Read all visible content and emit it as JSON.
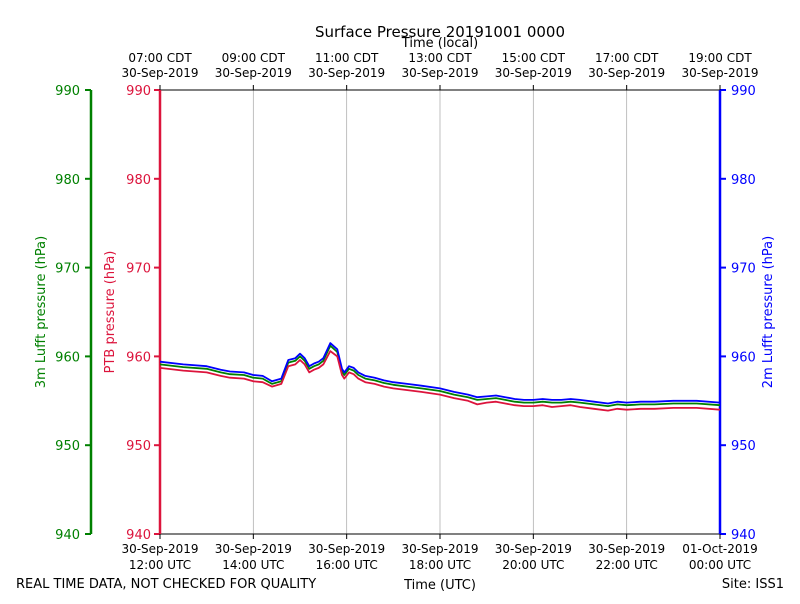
{
  "chart_data": {
    "type": "line",
    "title": "Surface Pressure 20191001 0000",
    "top_axis_label": "Time (local)",
    "xlabel": "Time (UTC)",
    "footer_left": "REAL TIME DATA, NOT CHECKED FOR QUALITY",
    "footer_right": "Site: ISS1",
    "xlim": [
      12,
      24
    ],
    "ylim": [
      940,
      990
    ],
    "y_ticks": [
      940,
      950,
      960,
      970,
      980,
      990
    ],
    "x_ticks": [
      12,
      14,
      16,
      18,
      20,
      22,
      24
    ],
    "bottom_tick_labels": [
      [
        "30-Sep-2019",
        "12:00 UTC"
      ],
      [
        "30-Sep-2019",
        "14:00 UTC"
      ],
      [
        "30-Sep-2019",
        "16:00 UTC"
      ],
      [
        "30-Sep-2019",
        "18:00 UTC"
      ],
      [
        "30-Sep-2019",
        "20:00 UTC"
      ],
      [
        "30-Sep-2019",
        "22:00 UTC"
      ],
      [
        "01-Oct-2019",
        "00:00 UTC"
      ]
    ],
    "top_tick_labels": [
      [
        "07:00 CDT",
        "30-Sep-2019"
      ],
      [
        "09:00 CDT",
        "30-Sep-2019"
      ],
      [
        "11:00 CDT",
        "30-Sep-2019"
      ],
      [
        "13:00 CDT",
        "30-Sep-2019"
      ],
      [
        "15:00 CDT",
        "30-Sep-2019"
      ],
      [
        "17:00 CDT",
        "30-Sep-2019"
      ],
      [
        "19:00 CDT",
        "30-Sep-2019"
      ]
    ],
    "axes": {
      "left_outer": {
        "label": "3m Lufft pressure (hPa)",
        "color": "#008000"
      },
      "left_inner": {
        "label": "PTB pressure (hPa)",
        "color": "#dc143c"
      },
      "right": {
        "label": "2m Lufft pressure (hPa)",
        "color": "#0000ff"
      }
    },
    "x": [
      12.0,
      12.5,
      13.0,
      13.3,
      13.5,
      13.8,
      14.0,
      14.2,
      14.4,
      14.6,
      14.75,
      14.9,
      15.0,
      15.1,
      15.2,
      15.3,
      15.4,
      15.5,
      15.65,
      15.8,
      15.9,
      15.95,
      16.05,
      16.15,
      16.25,
      16.4,
      16.6,
      16.8,
      17.0,
      17.3,
      17.6,
      18.0,
      18.3,
      18.6,
      18.8,
      19.0,
      19.2,
      19.4,
      19.6,
      19.8,
      20.0,
      20.2,
      20.4,
      20.6,
      20.8,
      21.0,
      21.3,
      21.6,
      21.8,
      22.0,
      22.3,
      22.6,
      23.0,
      23.5,
      24.0
    ],
    "series": [
      {
        "name": "2m Lufft pressure",
        "color": "#0000ff",
        "values": [
          959.4,
          959.1,
          958.9,
          958.5,
          958.3,
          958.2,
          957.9,
          957.8,
          957.2,
          957.5,
          959.6,
          959.8,
          960.3,
          959.8,
          958.9,
          959.2,
          959.4,
          959.8,
          961.5,
          960.8,
          958.6,
          958.2,
          958.9,
          958.7,
          958.2,
          957.8,
          957.6,
          957.3,
          957.1,
          956.9,
          956.7,
          956.4,
          956.0,
          955.7,
          955.4,
          955.5,
          955.6,
          955.4,
          955.2,
          955.1,
          955.1,
          955.2,
          955.1,
          955.1,
          955.2,
          955.1,
          954.9,
          954.7,
          954.9,
          954.8,
          954.9,
          954.9,
          955.0,
          955.0,
          954.8
        ]
      },
      {
        "name": "3m Lufft pressure",
        "color": "#008000",
        "values": [
          959.1,
          958.8,
          958.6,
          958.2,
          958.0,
          957.9,
          957.6,
          957.5,
          956.9,
          957.2,
          959.3,
          959.5,
          960.0,
          959.5,
          958.6,
          958.9,
          959.1,
          959.5,
          961.2,
          960.5,
          958.3,
          957.9,
          958.6,
          958.4,
          957.9,
          957.5,
          957.3,
          957.0,
          956.8,
          956.6,
          956.4,
          956.1,
          955.7,
          955.4,
          955.1,
          955.2,
          955.3,
          955.1,
          954.9,
          954.8,
          954.8,
          954.9,
          954.8,
          954.8,
          954.9,
          954.8,
          954.6,
          954.4,
          954.6,
          954.5,
          954.6,
          954.6,
          954.7,
          954.7,
          954.5
        ]
      },
      {
        "name": "PTB pressure",
        "color": "#dc143c",
        "values": [
          958.7,
          958.4,
          958.2,
          957.8,
          957.6,
          957.5,
          957.2,
          957.1,
          956.6,
          956.9,
          958.9,
          959.1,
          959.6,
          959.1,
          958.2,
          958.5,
          958.7,
          959.1,
          960.6,
          960.0,
          957.9,
          957.5,
          958.2,
          958.0,
          957.5,
          957.1,
          956.9,
          956.6,
          956.4,
          956.2,
          956.0,
          955.7,
          955.3,
          955.0,
          954.6,
          954.8,
          954.9,
          954.7,
          954.5,
          954.4,
          954.4,
          954.5,
          954.3,
          954.4,
          954.5,
          954.3,
          954.1,
          953.9,
          954.1,
          954.0,
          954.1,
          954.1,
          954.2,
          954.2,
          954.0
        ]
      }
    ]
  }
}
